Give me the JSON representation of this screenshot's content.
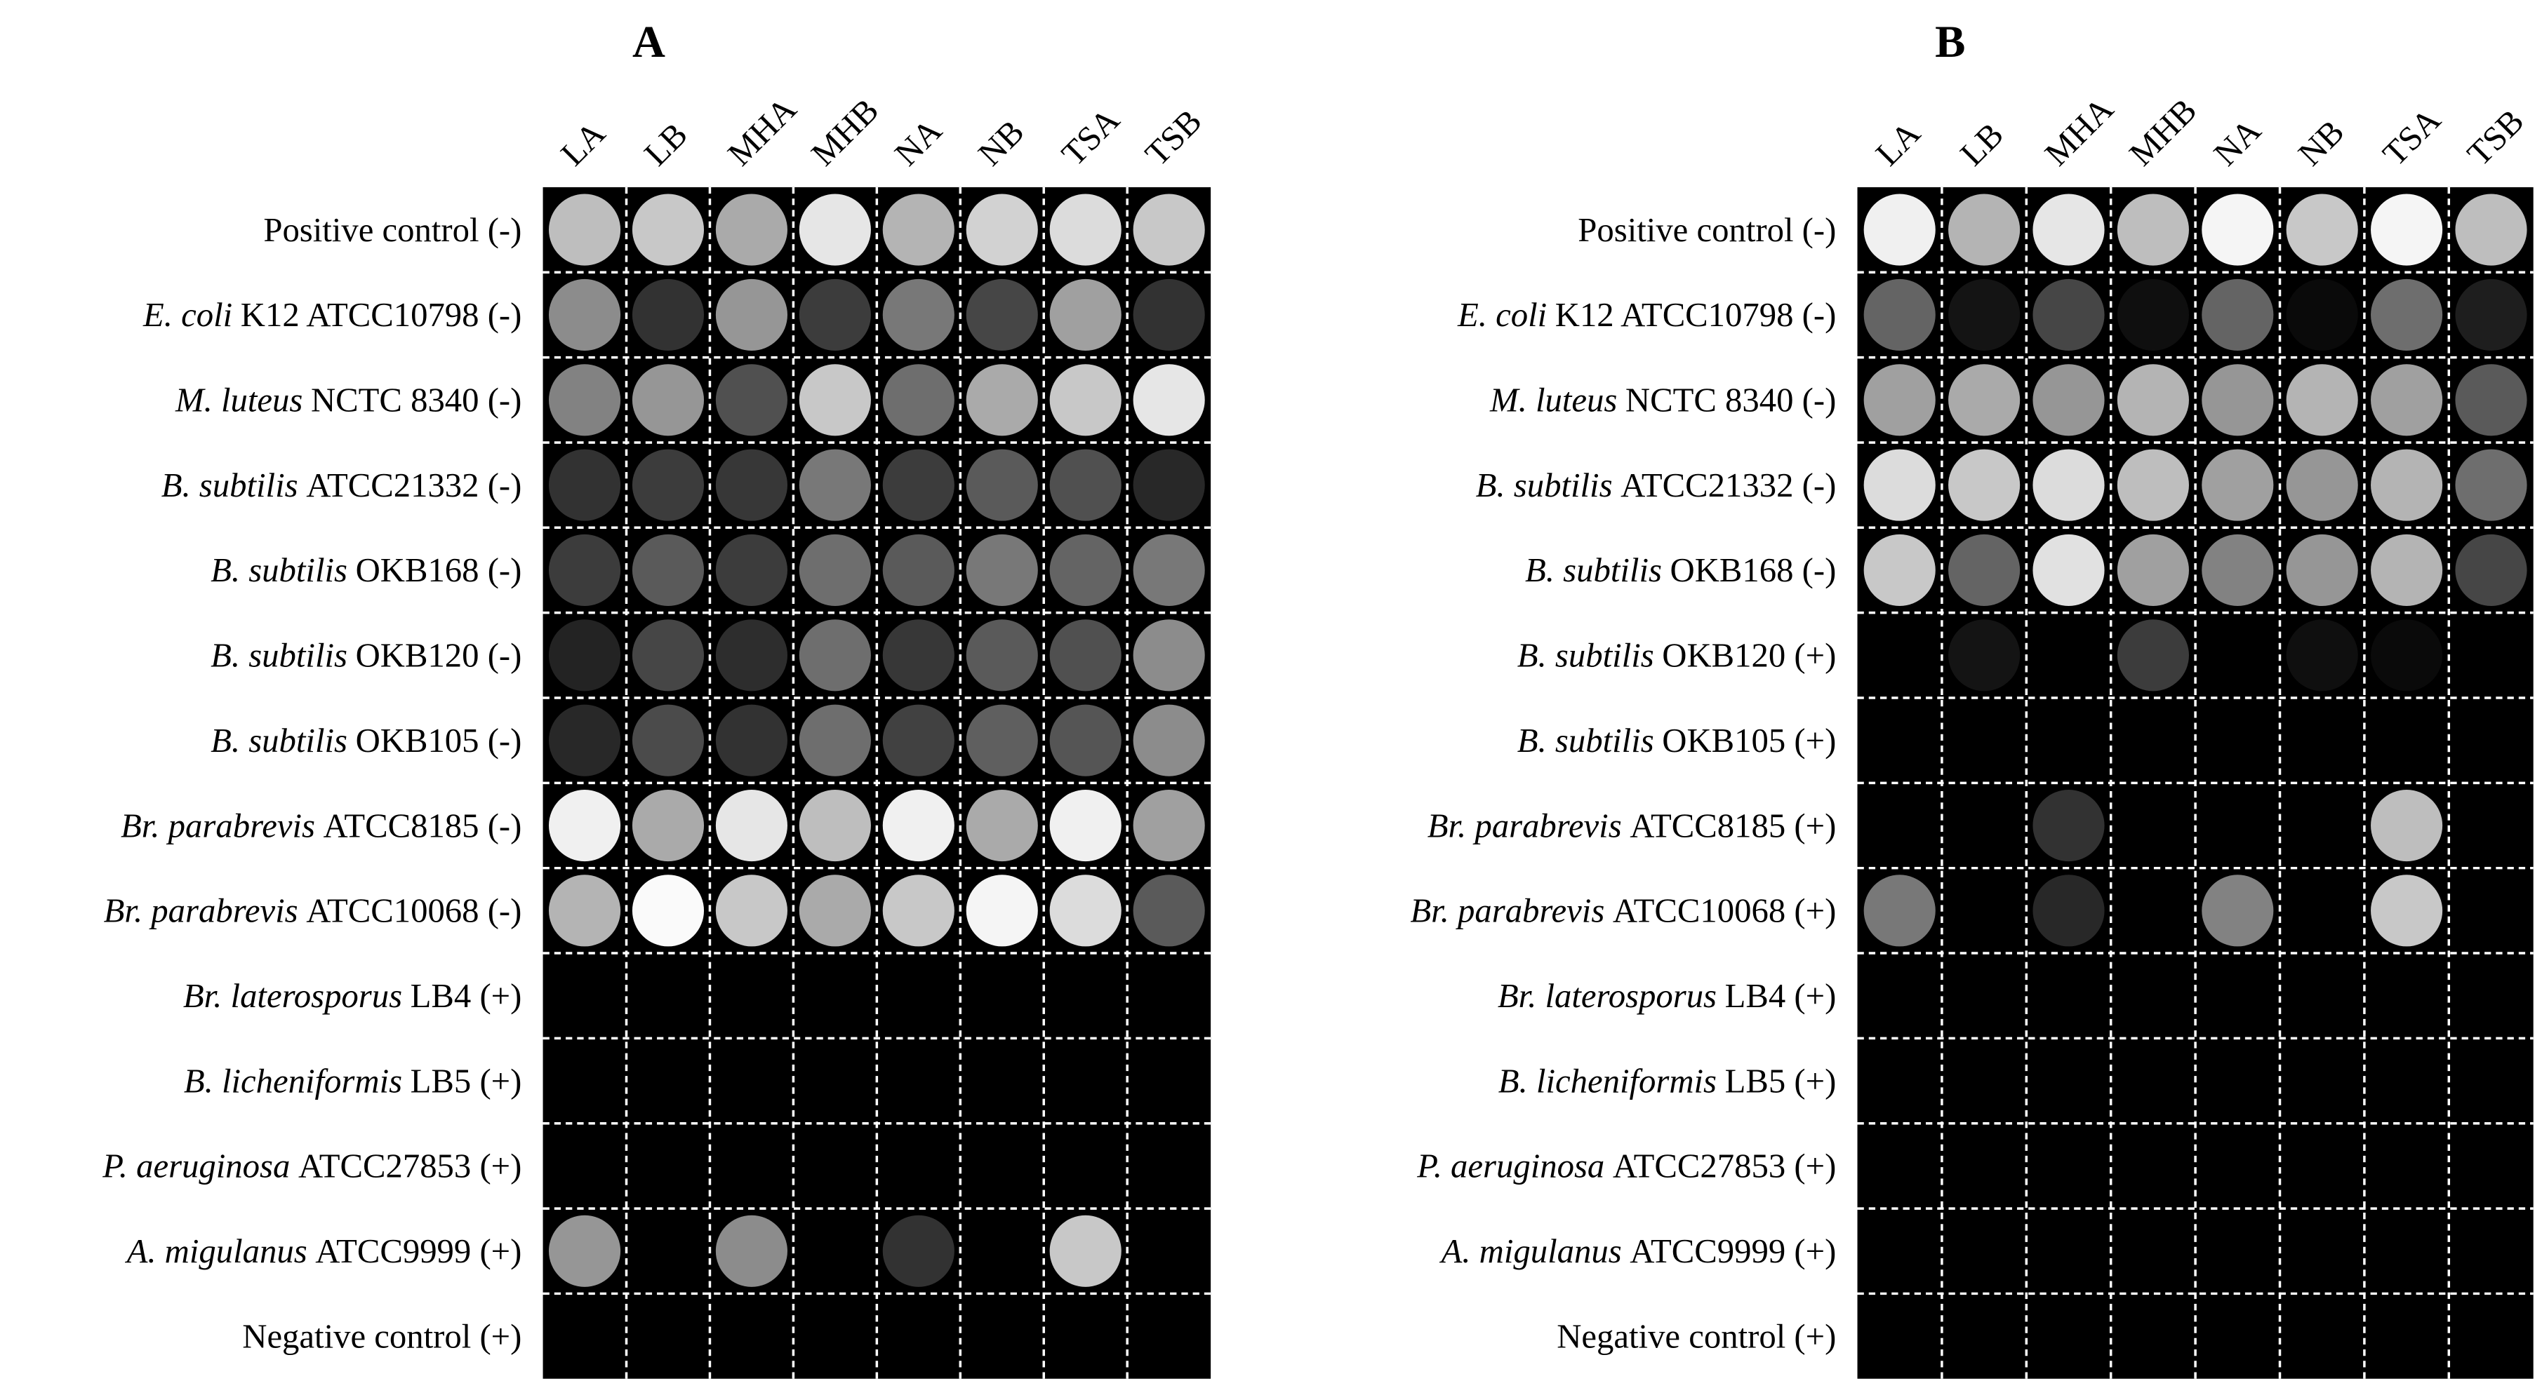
{
  "panels": [
    {
      "title": "A",
      "columns": [
        "LA",
        "LB",
        "MHA",
        "MHB",
        "NA",
        "NB",
        "TSA",
        "TSB"
      ],
      "rows": [
        {
          "text": "Positive control (-)"
        },
        {
          "italic": "E. coli",
          "text": "K12 ATCC10798 (-)"
        },
        {
          "italic": "M. luteus",
          "text": "NCTC 8340 (-)"
        },
        {
          "italic": "B. subtilis",
          "text": "ATCC21332 (-)"
        },
        {
          "italic": "B. subtilis",
          "text": "OKB168 (-)"
        },
        {
          "italic": "B. subtilis",
          "text": "OKB120 (-)"
        },
        {
          "italic": "B. subtilis",
          "text": "OKB105 (-)"
        },
        {
          "italic": "Br. parabrevis",
          "text": "ATCC8185 (-)"
        },
        {
          "italic": "Br. parabrevis",
          "text": "ATCC10068 (-)"
        },
        {
          "italic": "Br. laterosporus",
          "text": "LB4 (+)"
        },
        {
          "italic": "B. licheniformis",
          "text": "LB5 (+)"
        },
        {
          "italic": "P. aeruginosa",
          "text": "ATCC27853 (+)"
        },
        {
          "italic": "A. migulanus",
          "text": "ATCC9999 (+)"
        },
        {
          "text": "Negative control (+)"
        }
      ]
    },
    {
      "title": "B",
      "columns": [
        "LA",
        "LB",
        "MHA",
        "MHB",
        "NA",
        "NB",
        "TSA",
        "TSB"
      ],
      "rows": [
        {
          "text": "Positive control (-)"
        },
        {
          "italic": "E. coli",
          "text": "K12 ATCC10798 (-)"
        },
        {
          "italic": "M. luteus",
          "text": "NCTC 8340 (-)"
        },
        {
          "italic": "B. subtilis",
          "text": "ATCC21332 (-)"
        },
        {
          "italic": "B. subtilis",
          "text": "OKB168 (-)"
        },
        {
          "italic": "B. subtilis",
          "text": "OKB120 (+)"
        },
        {
          "italic": "B. subtilis",
          "text": "OKB105 (+)"
        },
        {
          "italic": "Br. parabrevis",
          "text": "ATCC8185 (+)"
        },
        {
          "italic": "Br. parabrevis",
          "text": "ATCC10068 (+)"
        },
        {
          "italic": "Br. laterosporus",
          "text": "LB4 (+)"
        },
        {
          "italic": "B. licheniformis",
          "text": "LB5 (+)"
        },
        {
          "italic": "P. aeruginosa",
          "text": "ATCC27853 (+)"
        },
        {
          "italic": "A. migulanus",
          "text": "ATCC9999 (+)"
        },
        {
          "text": "Negative control (+)"
        }
      ]
    }
  ]
}
